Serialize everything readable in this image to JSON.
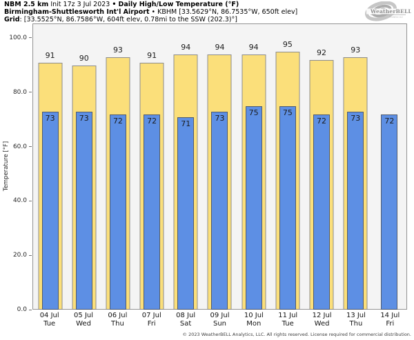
{
  "header": {
    "title_model": "NBM 2.5 km",
    "title_init": "Init 17z 3 Jul 2023",
    "title_sep": "•",
    "title_product": "Daily High/Low Temperature (°F)",
    "station_name": "Birmingham-Shuttlesworth Int'l Airport",
    "station_sep": "•",
    "station_info": "KBHM [33.5629°N, 86.7535°W, 650ft elev]",
    "grid_label": "Grid",
    "grid_info": ": [33.5525°N, 86.7586°W, 604ft elev, 0.78mi to the SSW (202.3)°]"
  },
  "logo": {
    "brand": "WeatherBELL",
    "brand_sub": "Analytics LLC"
  },
  "chart_data": {
    "type": "bar",
    "title": "Daily High/Low Temperature (°F)",
    "xlabel": "",
    "ylabel": "Temperature [°F]",
    "ylim": [
      0,
      105.3
    ],
    "yticks": [
      0,
      20,
      40,
      60,
      80,
      100
    ],
    "ytick_labels": [
      "0.0",
      "20.0",
      "40.0",
      "60.0",
      "80.0",
      "100.0"
    ],
    "grid": false,
    "legend_position": "none",
    "plot_bg": "#f4f4f4",
    "categories": [
      "04 Jul",
      "05 Jul",
      "06 Jul",
      "07 Jul",
      "08 Jul",
      "09 Jul",
      "10 Jul",
      "11 Jul",
      "12 Jul",
      "13 Jul",
      "14 Jul"
    ],
    "weekdays": [
      "Tue",
      "Wed",
      "Thu",
      "Fri",
      "Sat",
      "Sun",
      "Mon",
      "Tue",
      "Wed",
      "Thu",
      "Fri"
    ],
    "series": [
      {
        "name": "Daily High",
        "color": "#fbdf7a",
        "edge_color": "#8b8b8b",
        "values": [
          91,
          90,
          93,
          91,
          94,
          94,
          94,
          95,
          92,
          93,
          null
        ]
      },
      {
        "name": "Daily Low",
        "color": "#5d8fe4",
        "edge_color": "#4e5a6e",
        "values": [
          73,
          73,
          72,
          72,
          71,
          73,
          75,
          75,
          72,
          73,
          72
        ]
      }
    ]
  },
  "footer": {
    "copyright": "© 2023 WeatherBELL Analytics, LLC. All rights reserved. License required for commercial distribution."
  }
}
